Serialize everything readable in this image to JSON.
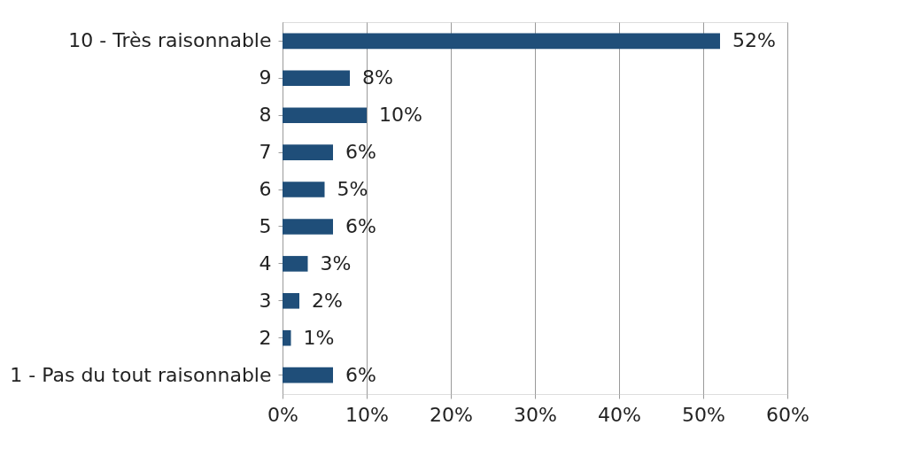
{
  "chart_data": {
    "type": "bar",
    "orientation": "horizontal",
    "categories": [
      "10 - Très raisonnable",
      "9",
      "8",
      "7",
      "6",
      "5",
      "4",
      "3",
      "2",
      "1 - Pas du tout raisonnable"
    ],
    "values": [
      52,
      8,
      10,
      6,
      5,
      6,
      3,
      2,
      1,
      6
    ],
    "value_labels": [
      "52%",
      "8%",
      "10%",
      "6%",
      "5%",
      "6%",
      "3%",
      "2%",
      "1%",
      "6%"
    ],
    "color": "#1f4e79",
    "xlim": [
      0,
      60
    ],
    "xticks": [
      {
        "value": 0,
        "label": "0%"
      },
      {
        "value": 10,
        "label": "10%"
      },
      {
        "value": 20,
        "label": "20%"
      },
      {
        "value": 30,
        "label": "30%"
      },
      {
        "value": 40,
        "label": "40%"
      },
      {
        "value": 50,
        "label": "50%"
      },
      {
        "value": 60,
        "label": "60%"
      }
    ],
    "grid": "x"
  }
}
